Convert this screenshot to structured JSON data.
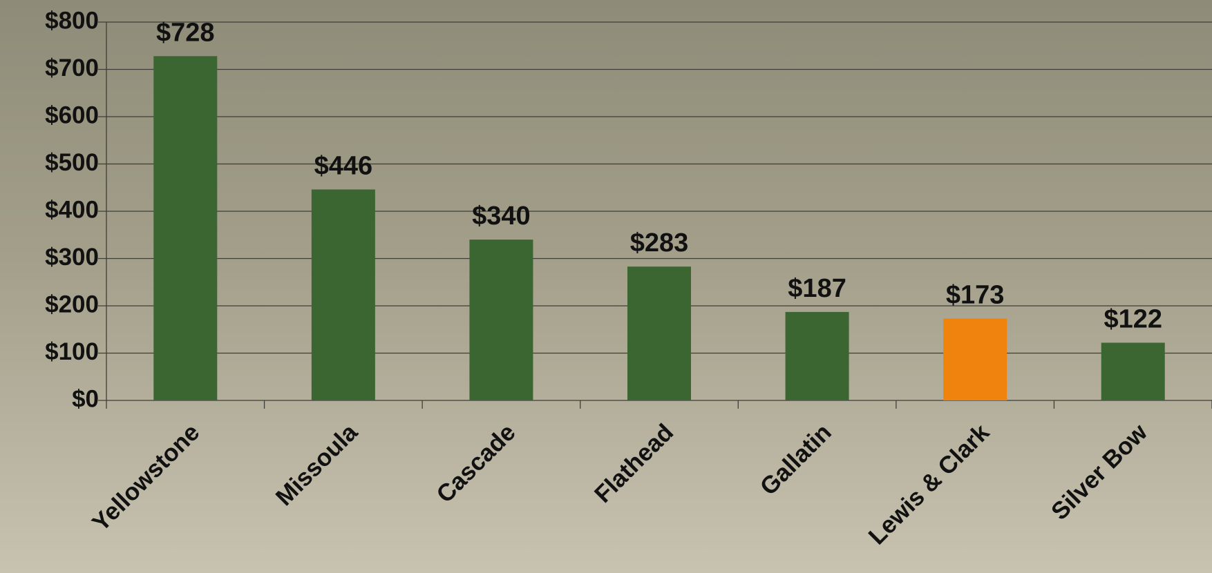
{
  "chart_data": {
    "type": "bar",
    "categories": [
      "Yellowstone",
      "Missoula",
      "Cascade",
      "Flathead",
      "Gallatin",
      "Lewis & Clark",
      "Silver Bow"
    ],
    "values": [
      728,
      446,
      340,
      283,
      187,
      173,
      122
    ],
    "value_labels": [
      "$728",
      "$446",
      "$340",
      "$283",
      "$187",
      "$173",
      "$122"
    ],
    "colors": [
      "#3b6531",
      "#3b6531",
      "#3b6531",
      "#3b6531",
      "#3b6531",
      "#f0830e",
      "#3b6531"
    ],
    "ylim": [
      0,
      800
    ],
    "yticks": [
      {
        "value": 0,
        "label": "$0"
      },
      {
        "value": 100,
        "label": "$100"
      },
      {
        "value": 200,
        "label": "$200"
      },
      {
        "value": 300,
        "label": "$300"
      },
      {
        "value": 400,
        "label": "$400"
      },
      {
        "value": 500,
        "label": "$500"
      },
      {
        "value": 600,
        "label": "$600"
      },
      {
        "value": 700,
        "label": "$700"
      },
      {
        "value": 800,
        "label": "$800"
      }
    ],
    "grid": true
  }
}
